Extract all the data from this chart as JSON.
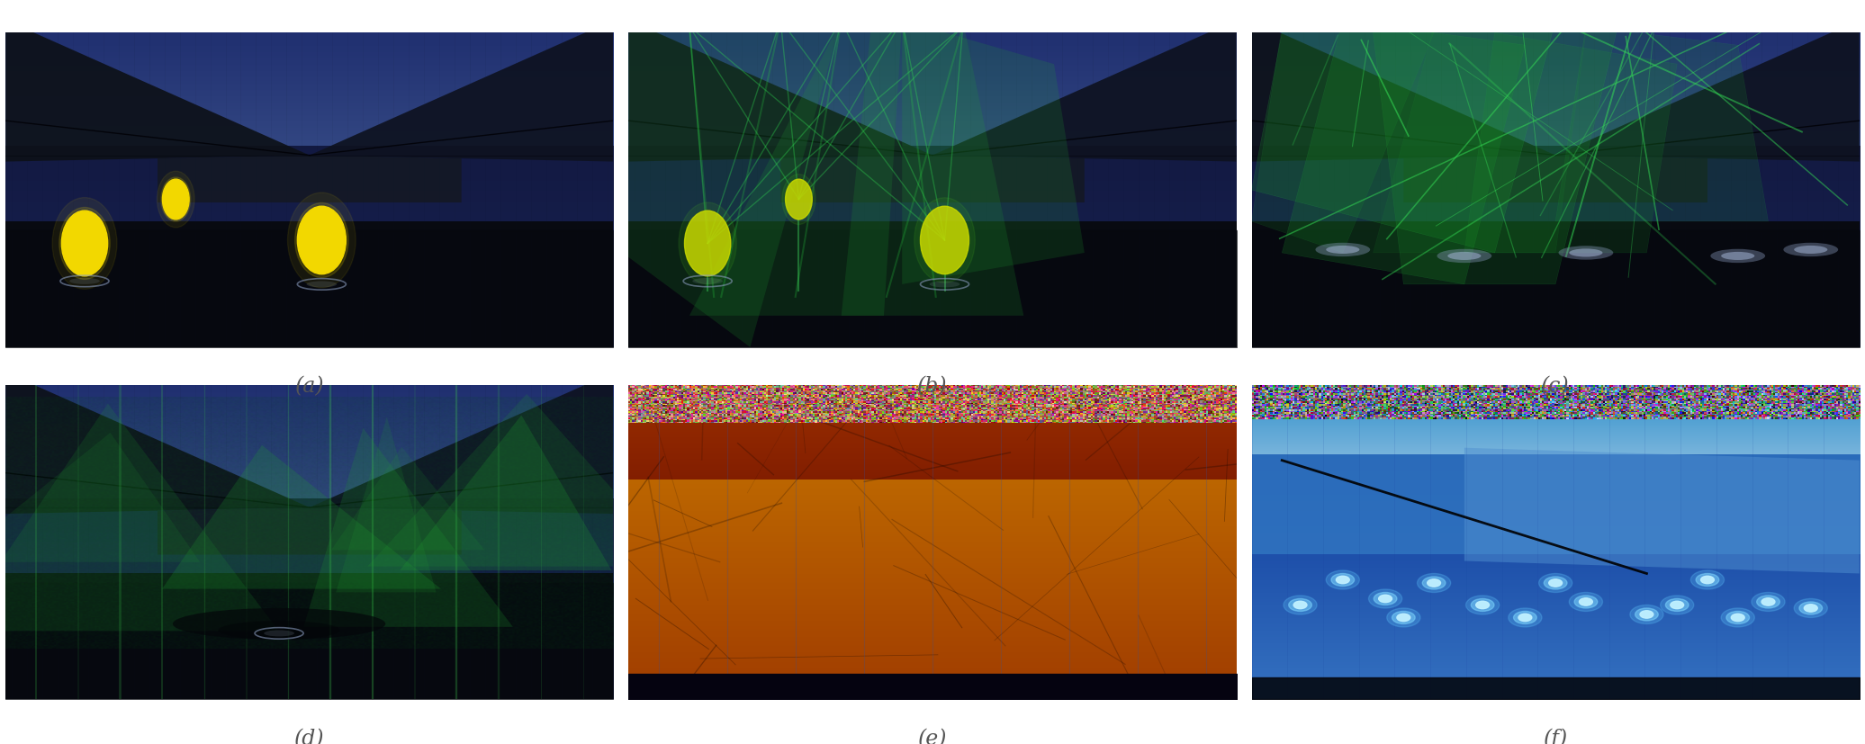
{
  "figsize": [
    20.72,
    8.28
  ],
  "dpi": 100,
  "background_color": "#ffffff",
  "label_fontsize": 17,
  "label_color": "#555555",
  "labels": [
    "(a)",
    "(b)",
    "(c)",
    "(d)",
    "(e)",
    "(f)"
  ]
}
